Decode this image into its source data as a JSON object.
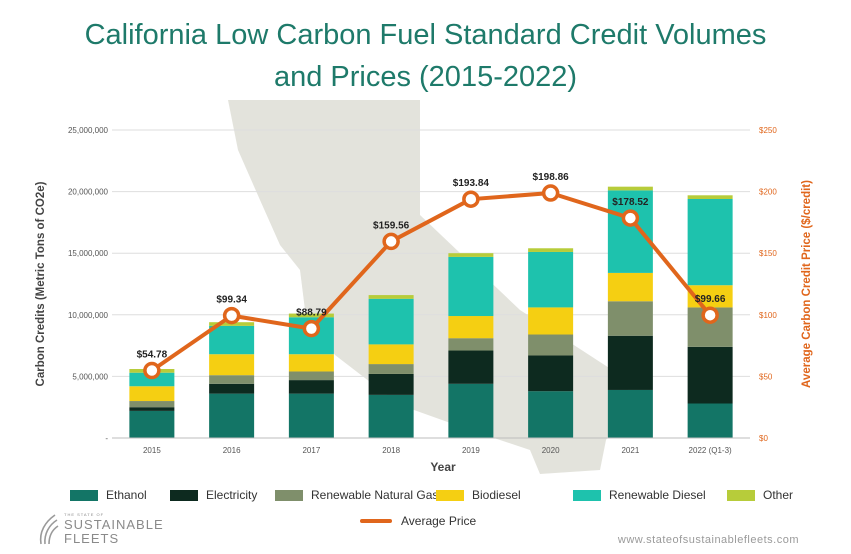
{
  "title": {
    "line1": "California Low Carbon Fuel Standard Credit Volumes",
    "line2": "and Prices (2015-2022)"
  },
  "chart_data": {
    "type": "bar",
    "stacked": true,
    "categories": [
      "2015",
      "2016",
      "2017",
      "2018",
      "2019",
      "2020",
      "2021",
      "2022 (Q1-3)"
    ],
    "xlabel": "Year",
    "ylabel": "Carbon Credits (Metric Tons of CO2e)",
    "y2label": "Average Carbon Credit Price ($/credit)",
    "ylim": [
      0,
      25000000
    ],
    "y2lim": [
      0,
      250
    ],
    "yticks": [
      "-",
      "5,000,000",
      "10,000,000",
      "15,000,000",
      "20,000,000",
      "25,000,000"
    ],
    "y2ticks": [
      "$0",
      "$50",
      "$100",
      "$150",
      "$200",
      "$250"
    ],
    "grid": true,
    "legend_position": "bottom",
    "series": [
      {
        "name": "Ethanol",
        "color": "#137566",
        "values": [
          2200000,
          3600000,
          3600000,
          3500000,
          4400000,
          3800000,
          3900000,
          2800000
        ]
      },
      {
        "name": "Electricity",
        "color": "#0d2a1f",
        "values": [
          300000,
          800000,
          1100000,
          1700000,
          2700000,
          2900000,
          4400000,
          4600000
        ]
      },
      {
        "name": "Renewable Natural Gas",
        "color": "#7f8f6b",
        "values": [
          500000,
          700000,
          700000,
          800000,
          1000000,
          1700000,
          2800000,
          3200000
        ]
      },
      {
        "name": "Biodiesel",
        "color": "#f5cf12",
        "values": [
          1200000,
          1700000,
          1400000,
          1600000,
          1800000,
          2200000,
          2300000,
          1800000
        ]
      },
      {
        "name": "Renewable Diesel",
        "color": "#1ec2ad",
        "values": [
          1100000,
          2300000,
          3000000,
          3700000,
          4800000,
          4500000,
          6700000,
          7000000
        ]
      },
      {
        "name": "Other",
        "color": "#b7cc3a",
        "values": [
          300000,
          300000,
          300000,
          300000,
          300000,
          300000,
          300000,
          300000
        ]
      }
    ],
    "line_series": {
      "name": "Average Price",
      "color": "#e0661c",
      "values": [
        54.78,
        99.34,
        88.79,
        159.56,
        193.84,
        198.86,
        178.52,
        99.66
      ],
      "labels": [
        "$54.78",
        "$99.34",
        "$88.79",
        "$159.56",
        "$193.84",
        "$198.86",
        "$178.52",
        "$99.66"
      ]
    }
  },
  "footer": {
    "logo_small": "THE STATE OF",
    "logo_line1": "SUSTAINABLE",
    "logo_line2": "FLEETS",
    "website": "www.stateofsustainablefleets.com"
  }
}
